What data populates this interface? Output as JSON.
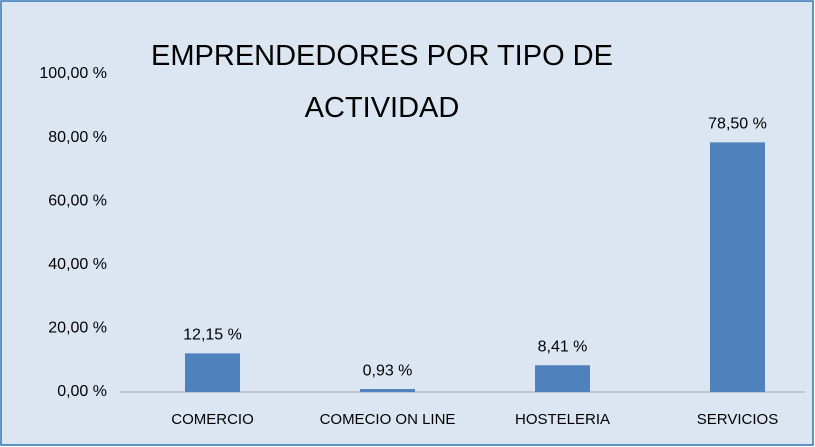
{
  "chart_data": {
    "type": "bar",
    "title": "EMPRENDEDORES POR TIPO DE ACTIVIDAD",
    "categories": [
      "COMERCIO",
      "COMECIO ON LINE",
      "HOSTELERIA",
      "SERVICIOS"
    ],
    "values": [
      12.15,
      0.93,
      8.41,
      78.5
    ],
    "value_labels": [
      "12,15 %",
      "0,93 %",
      "8,41 %",
      "78,50 %"
    ],
    "color": "#4f81bd",
    "ylim": [
      0,
      100
    ],
    "yticks": [
      {
        "value": 0,
        "label": "0,00 %"
      },
      {
        "value": 20,
        "label": "20,00 %"
      },
      {
        "value": 40,
        "label": "40,00 %"
      },
      {
        "value": 60,
        "label": "60,00 %"
      },
      {
        "value": 80,
        "label": "80,00 %"
      },
      {
        "value": 100,
        "label": "100,00 %"
      }
    ],
    "grid": false
  }
}
